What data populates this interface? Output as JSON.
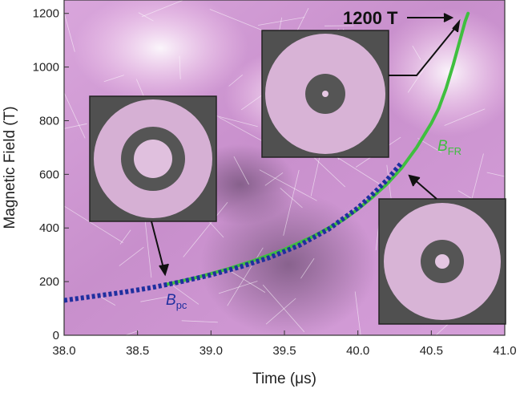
{
  "chart_data": {
    "type": "line",
    "title": "",
    "xlabel": "Time (μs)",
    "ylabel": "Magnetic Field (T)",
    "xlim": [
      38.0,
      41.0
    ],
    "ylim": [
      0,
      1250
    ],
    "xticks": [
      "38.0",
      "38.5",
      "39.0",
      "39.5",
      "40.0",
      "40.5",
      "41.0"
    ],
    "yticks": [
      "0",
      "200",
      "400",
      "600",
      "800",
      "1000",
      "1200"
    ],
    "grid": false,
    "colors": {
      "fr": "#3fbf3f",
      "pc": "#1f2f9f"
    },
    "series": [
      {
        "name": "B_FR",
        "label_main": "B",
        "label_sub": "FR",
        "style": "solid",
        "x": [
          38.7,
          38.9,
          39.1,
          39.3,
          39.5,
          39.7,
          39.9,
          40.0,
          40.1,
          40.2,
          40.3,
          40.4,
          40.5,
          40.55,
          40.6,
          40.65,
          40.7,
          40.73,
          40.75
        ],
        "y": [
          190,
          215,
          245,
          280,
          320,
          370,
          430,
          470,
          515,
          565,
          625,
          700,
          790,
          845,
          920,
          1010,
          1110,
          1170,
          1200
        ]
      },
      {
        "name": "B_pc",
        "label_main": "B",
        "label_sub": "pc",
        "style": "dotted",
        "x": [
          38.0,
          38.2,
          38.4,
          38.6,
          38.8,
          39.0,
          39.2,
          39.4,
          39.6,
          39.8,
          40.0,
          40.1,
          40.2,
          40.3
        ],
        "y": [
          130,
          145,
          160,
          178,
          200,
          225,
          255,
          290,
          335,
          395,
          475,
          525,
          580,
          645
        ]
      }
    ],
    "annotations": [
      {
        "text": "1200 T"
      }
    ]
  }
}
